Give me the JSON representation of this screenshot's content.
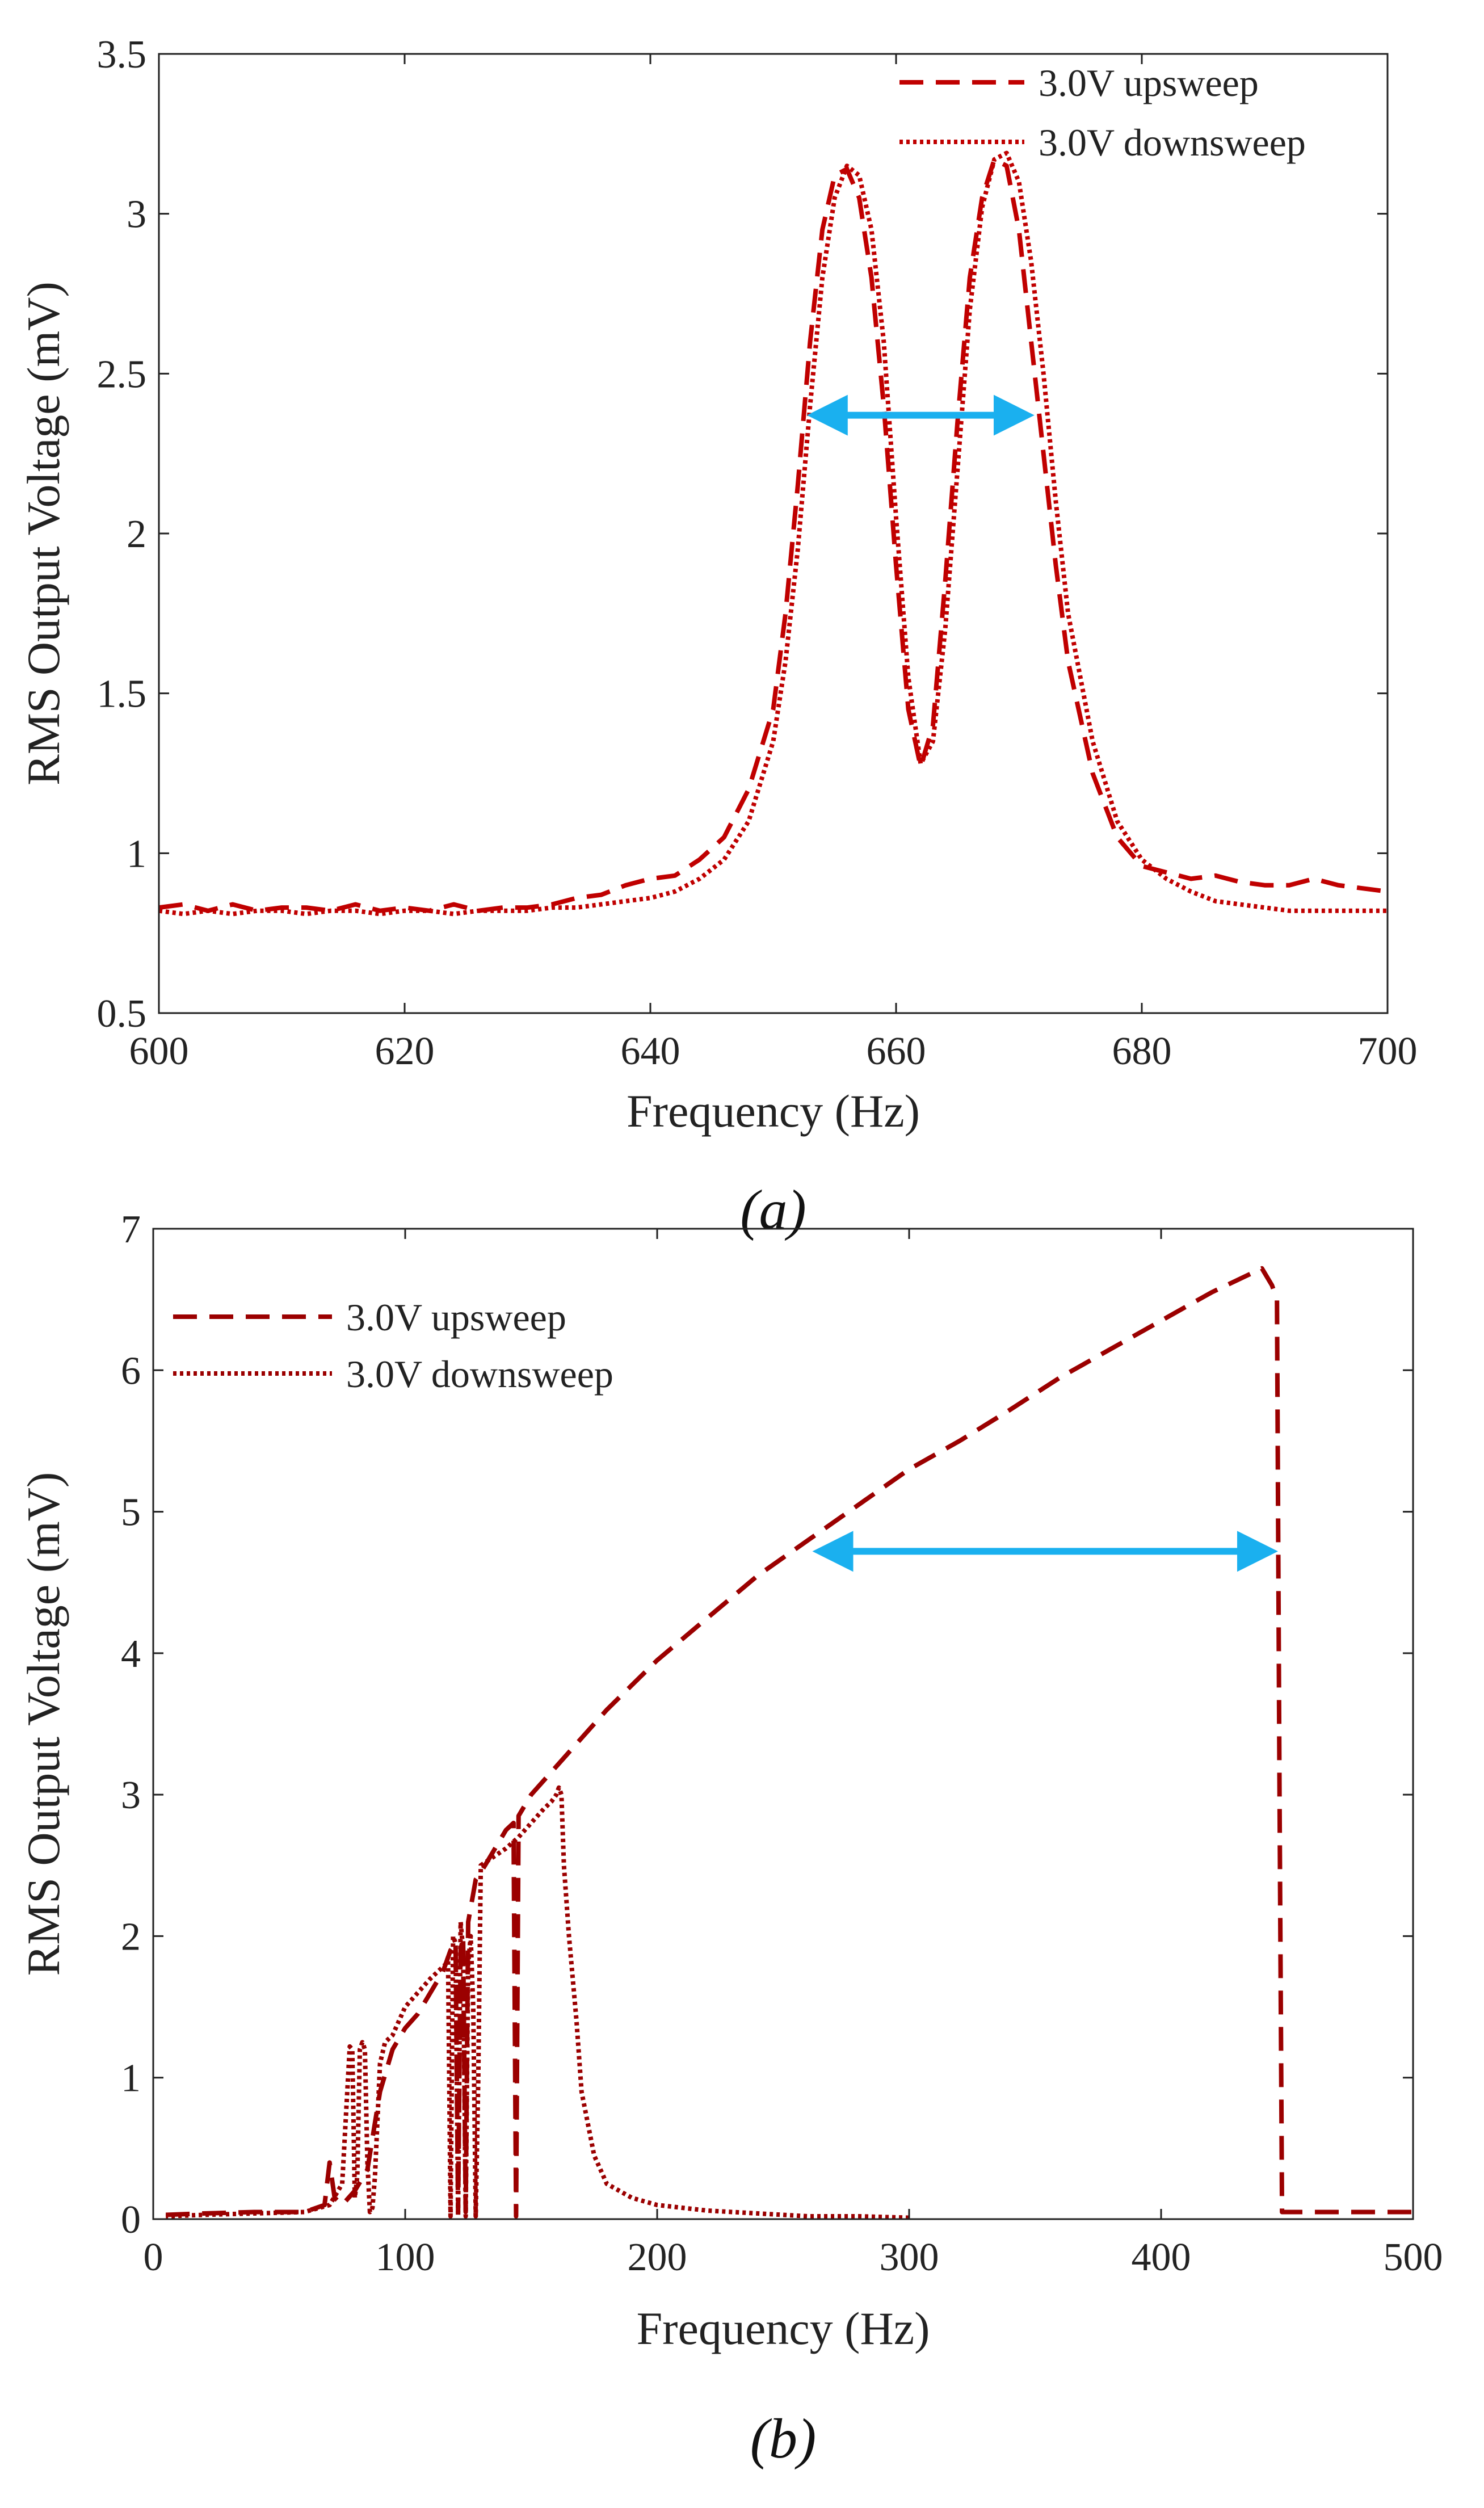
{
  "chart_data": [
    {
      "type": "line",
      "panel_label": "(a)",
      "xlabel": "Frequency (Hz)",
      "ylabel": "RMS Output Voltage (mV)",
      "xlim": [
        600,
        700
      ],
      "ylim": [
        0.5,
        3.5
      ],
      "xticks": [
        600,
        620,
        640,
        660,
        680,
        700
      ],
      "yticks": [
        0.5,
        1,
        1.5,
        2,
        2.5,
        3,
        3.5
      ],
      "xtick_labels": [
        "600",
        "620",
        "640",
        "660",
        "680",
        "700"
      ],
      "ytick_labels": [
        "0.5",
        "1",
        "1.5",
        "2",
        "2.5",
        "3",
        "3.5"
      ],
      "legend_position": "top-right",
      "series": [
        {
          "name": "3.0V upsweep",
          "style": "dashed",
          "color": "#c00000",
          "x": [
            600,
            602,
            604,
            606,
            608,
            610,
            612,
            614,
            616,
            618,
            620,
            622,
            624,
            626,
            628,
            630,
            632,
            634,
            636,
            638,
            640,
            642,
            644,
            646,
            648,
            650,
            651,
            652,
            653,
            654,
            655,
            656,
            657,
            658,
            659,
            660,
            661,
            662,
            663,
            664,
            665,
            666,
            667,
            668,
            669,
            670,
            671,
            672,
            673,
            674,
            676,
            678,
            680,
            682,
            684,
            686,
            688,
            690,
            692,
            694,
            696,
            698,
            700
          ],
          "y": [
            0.83,
            0.84,
            0.82,
            0.84,
            0.82,
            0.83,
            0.83,
            0.82,
            0.84,
            0.82,
            0.83,
            0.82,
            0.84,
            0.82,
            0.83,
            0.83,
            0.84,
            0.86,
            0.87,
            0.9,
            0.92,
            0.93,
            0.98,
            1.05,
            1.2,
            1.45,
            1.75,
            2.15,
            2.6,
            2.95,
            3.12,
            3.14,
            3.05,
            2.8,
            2.4,
            1.9,
            1.45,
            1.27,
            1.4,
            1.85,
            2.35,
            2.8,
            3.05,
            3.17,
            3.15,
            2.95,
            2.6,
            2.25,
            1.9,
            1.6,
            1.25,
            1.05,
            0.96,
            0.94,
            0.92,
            0.93,
            0.91,
            0.9,
            0.9,
            0.92,
            0.9,
            0.89,
            0.88
          ]
        },
        {
          "name": "3.0V downsweep",
          "style": "dotted",
          "color": "#c00000",
          "x": [
            600,
            602,
            604,
            606,
            608,
            610,
            612,
            614,
            616,
            618,
            620,
            622,
            624,
            626,
            628,
            630,
            632,
            634,
            636,
            638,
            640,
            642,
            644,
            646,
            648,
            650,
            651,
            652,
            653,
            654,
            655,
            656,
            657,
            658,
            659,
            660,
            661,
            662,
            663,
            664,
            665,
            666,
            667,
            668,
            669,
            670,
            671,
            672,
            673,
            674,
            676,
            678,
            680,
            682,
            684,
            686,
            688,
            690,
            692,
            694,
            696,
            698,
            700
          ],
          "y": [
            0.82,
            0.81,
            0.82,
            0.81,
            0.82,
            0.82,
            0.81,
            0.82,
            0.82,
            0.81,
            0.82,
            0.82,
            0.81,
            0.82,
            0.82,
            0.82,
            0.83,
            0.83,
            0.84,
            0.85,
            0.86,
            0.88,
            0.92,
            0.98,
            1.1,
            1.35,
            1.6,
            1.95,
            2.4,
            2.8,
            3.05,
            3.15,
            3.12,
            2.95,
            2.6,
            2.05,
            1.55,
            1.28,
            1.35,
            1.7,
            2.2,
            2.7,
            3.02,
            3.17,
            3.19,
            3.1,
            2.85,
            2.5,
            2.1,
            1.75,
            1.35,
            1.1,
            0.98,
            0.92,
            0.88,
            0.85,
            0.84,
            0.83,
            0.82,
            0.82,
            0.82,
            0.82,
            0.82
          ]
        }
      ],
      "annotations": [
        {
          "type": "double-arrow",
          "color": "#1ab0ef",
          "x_start": 652,
          "x_end": 672,
          "y": 2.37
        }
      ]
    },
    {
      "type": "line",
      "panel_label": "(b)",
      "xlabel": "Frequency (Hz)",
      "ylabel": "RMS Output Voltage (mV)",
      "xlim": [
        0,
        500
      ],
      "ylim": [
        0,
        7
      ],
      "xticks": [
        0,
        100,
        200,
        300,
        400,
        500
      ],
      "yticks": [
        0,
        1,
        2,
        3,
        4,
        5,
        6,
        7
      ],
      "xtick_labels": [
        "0",
        "100",
        "200",
        "300",
        "400",
        "500"
      ],
      "ytick_labels": [
        "0",
        "1",
        "2",
        "3",
        "4",
        "5",
        "6",
        "7"
      ],
      "legend_position": "top-left",
      "series": [
        {
          "name": "3.0V upsweep",
          "style": "dashed",
          "color": "#9b0000",
          "x": [
            5,
            20,
            40,
            60,
            68,
            70,
            72,
            75,
            80,
            85,
            90,
            95,
            100,
            105,
            110,
            115,
            118,
            120,
            121,
            122,
            123,
            124,
            125,
            126,
            127,
            128,
            130,
            135,
            140,
            143,
            144,
            145,
            150,
            160,
            170,
            180,
            200,
            220,
            240,
            260,
            280,
            300,
            320,
            340,
            360,
            380,
            400,
            420,
            440,
            444,
            446,
            447,
            448,
            455,
            480,
            500
          ],
          "y": [
            0.03,
            0.04,
            0.05,
            0.05,
            0.1,
            0.4,
            0.15,
            0.1,
            0.2,
            0.35,
            0.9,
            1.2,
            1.35,
            1.45,
            1.6,
            1.75,
            1.9,
            1.95,
            0.05,
            1.9,
            2.0,
            0.05,
            2.1,
            2.2,
            2.3,
            2.4,
            2.45,
            2.6,
            2.75,
            2.8,
            0.02,
            2.85,
            3.0,
            3.2,
            3.4,
            3.6,
            3.95,
            4.25,
            4.55,
            4.8,
            5.05,
            5.3,
            5.5,
            5.72,
            5.95,
            6.15,
            6.35,
            6.55,
            6.72,
            6.6,
            6.5,
            3.0,
            0.05,
            0.05,
            0.05,
            0.05
          ]
        },
        {
          "name": "3.0V downsweep",
          "style": "dotted",
          "color": "#9b0000",
          "x": [
            300,
            280,
            260,
            240,
            220,
            200,
            190,
            180,
            175,
            170,
            168,
            165,
            163,
            162,
            161,
            160,
            158,
            155,
            150,
            145,
            140,
            130,
            129,
            128,
            127,
            126,
            125,
            124,
            123,
            122,
            121,
            120,
            119,
            118,
            117,
            116,
            110,
            105,
            100,
            95,
            92,
            90,
            88,
            87,
            86,
            85,
            84,
            83,
            82,
            81,
            80,
            79,
            78,
            75,
            70,
            60,
            40,
            20,
            5
          ],
          "y": [
            0.01,
            0.02,
            0.02,
            0.04,
            0.06,
            0.1,
            0.15,
            0.25,
            0.45,
            0.9,
            1.4,
            2.0,
            2.5,
            3.0,
            3.05,
            3.0,
            2.95,
            2.9,
            2.8,
            2.7,
            2.62,
            2.5,
            1.0,
            0.02,
            1.5,
            2.0,
            1.8,
            0.02,
            1.9,
            2.1,
            0.02,
            1.95,
            2.0,
            0.02,
            1.85,
            1.8,
            1.7,
            1.6,
            1.5,
            1.3,
            1.25,
            1.1,
            0.3,
            0.08,
            0.05,
            0.4,
            1.2,
            1.25,
            1.2,
            0.3,
            0.15,
            1.2,
            1.22,
            0.25,
            0.1,
            0.05,
            0.04,
            0.03,
            0.02
          ]
        }
      ],
      "annotations": [
        {
          "type": "double-arrow",
          "color": "#1ab0ef",
          "x_start": 258,
          "x_end": 450,
          "y": 4.72
        }
      ]
    }
  ]
}
